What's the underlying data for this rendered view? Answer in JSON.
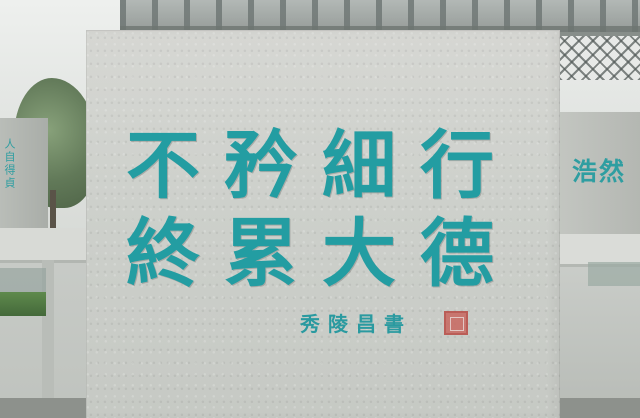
{
  "scene": {
    "type": "stone stele inscription",
    "colors": {
      "inscription": "#239da2",
      "stone": "#cfd1cc",
      "seal": "#b84a44"
    }
  },
  "stele": {
    "inscription_line_1": "不矜細行",
    "inscription_line_2": "終累大德",
    "signature": "秀陵昌書",
    "seal": "seal-stamp"
  },
  "right_panel": {
    "partial_text": "浩然"
  },
  "left_panel": {
    "partial_text": "人自得貞"
  }
}
